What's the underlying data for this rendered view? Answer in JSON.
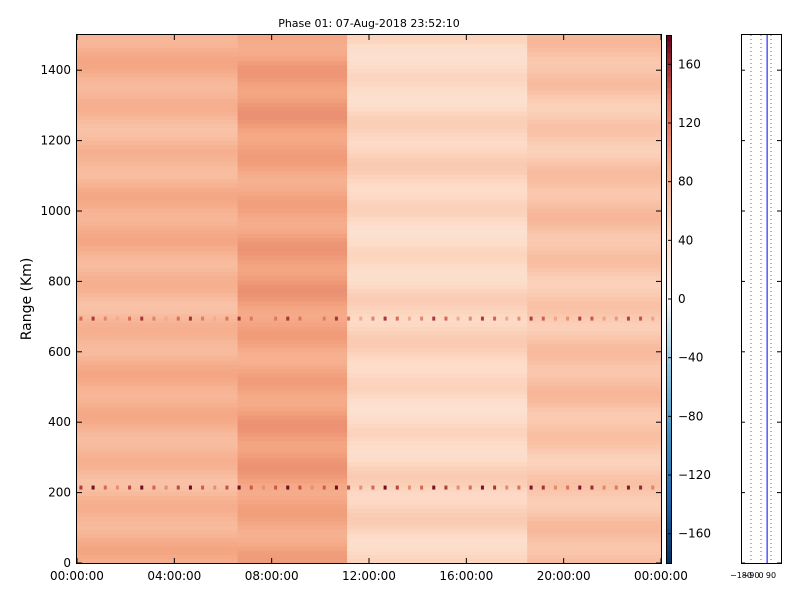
{
  "chart_data": [
    {
      "type": "heatmap",
      "title": "Phase 01: 07-Aug-2018 23:52:10",
      "ylabel": "Range (Km)",
      "xlabel": "",
      "x_range_hours": [
        0,
        24
      ],
      "ylim": [
        0,
        1500
      ],
      "x_tick_labels": [
        "00:00:00",
        "04:00:00",
        "08:00:00",
        "12:00:00",
        "16:00:00",
        "20:00:00",
        "00:00:00"
      ],
      "x_tick_hours": [
        0,
        4,
        8,
        12,
        16,
        20,
        24
      ],
      "y_ticks": [
        0,
        200,
        400,
        600,
        800,
        1000,
        1200,
        1400
      ],
      "colorbar": {
        "range": [
          -180,
          180
        ],
        "ticks": [
          -160,
          -120,
          -80,
          -40,
          0,
          40,
          80,
          120,
          160
        ],
        "colormap": "RdBu_r"
      },
      "segments": [
        {
          "start_hour": 0,
          "end_hour": 6.6,
          "base_phase": 78
        },
        {
          "start_hour": 6.6,
          "end_hour": 11.1,
          "base_phase": 92
        },
        {
          "start_hour": 11.1,
          "end_hour": 18.5,
          "base_phase": 48
        },
        {
          "start_hour": 18.5,
          "end_hour": 24,
          "base_phase": 64
        }
      ],
      "range_bands": [
        {
          "range_km": 215,
          "phase": 140
        },
        {
          "range_km": 695,
          "phase": 120
        }
      ],
      "grid": false
    },
    {
      "type": "line",
      "title": "",
      "xlim": [
        -180,
        180
      ],
      "x_tick_labels": [
        "−180",
        "−90",
        "0",
        "90"
      ],
      "x_ticks": [
        -180,
        -90,
        0,
        90
      ],
      "ylim": [
        0,
        1500
      ],
      "vertical_line_phase": 55,
      "line_color": "#0000ff",
      "grid": true
    }
  ]
}
